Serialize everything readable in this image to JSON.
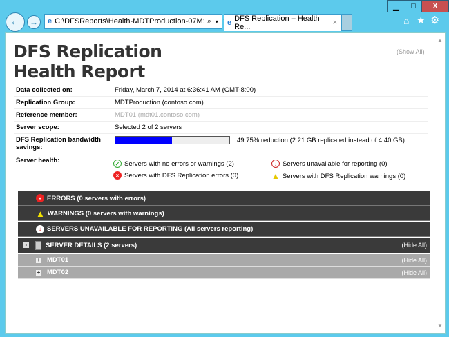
{
  "browser": {
    "address": "C:\\DFSReports\\Health-MDTProduction-07M:",
    "tab_title": "DFS Replication – Health Re...",
    "minimize": "▁",
    "maximize": "□",
    "close": "X"
  },
  "report": {
    "title_line1": "DFS Replication",
    "title_line2": "Health Report",
    "show_all": "(Show All)",
    "rows": [
      {
        "label": "Data collected on:",
        "value": "Friday, March 7, 2014 at 6:36:41 AM (GMT-8:00)"
      },
      {
        "label": "Replication Group:",
        "value": "MDTProduction (contoso.com)"
      },
      {
        "label": "Reference member:",
        "value": "MDT01 (mdt01.contoso.com)"
      },
      {
        "label": "Server scope:",
        "value": "Selected 2 of 2 servers"
      }
    ],
    "savings": {
      "label": "DFS Replication bandwidth savings:",
      "percent": 49.75,
      "text": "49.75% reduction (2.21 GB replicated instead of 4.40 GB)",
      "bar_color": "#0000ff"
    },
    "health": {
      "label": "Server health:",
      "ok": "Servers with no errors or warnings (2)",
      "errors": "Servers with DFS Replication errors (0)",
      "unavailable": "Servers unavailable for reporting (0)",
      "warnings": "Servers with DFS Replication warnings (0)"
    },
    "sections": {
      "errors": "ERRORS  (0 servers with errors)",
      "warnings": "WARNINGS  (0 servers with warnings)",
      "unavailable": "SERVERS UNAVAILABLE FOR REPORTING  (All servers reporting)",
      "details": "SERVER DETAILS  (2 servers)",
      "hide_all": "(Hide All)"
    },
    "servers": [
      {
        "name": "MDT01",
        "hide_all": "(Hide All)"
      },
      {
        "name": "MDT02",
        "hide_all": "(Hide All)"
      }
    ]
  }
}
